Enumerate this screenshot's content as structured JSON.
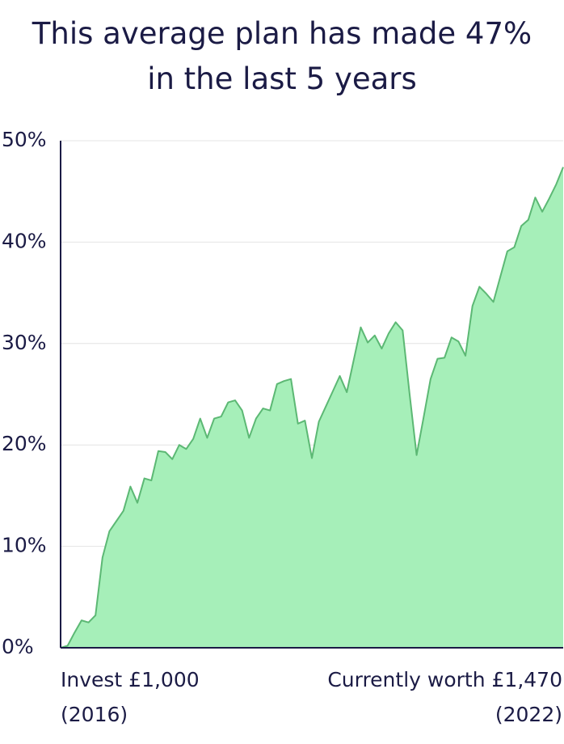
{
  "chart_data": {
    "type": "area",
    "title": "This average plan has made 47% in the last 5 years",
    "values": [
      0,
      0.2,
      1.5,
      2.7,
      2.5,
      3.2,
      8.9,
      11.5,
      12.5,
      13.5,
      15.9,
      14.3,
      16.7,
      16.5,
      19.4,
      19.3,
      18.6,
      20.0,
      19.6,
      20.6,
      22.6,
      20.7,
      22.6,
      22.8,
      24.2,
      24.4,
      23.4,
      20.7,
      22.6,
      23.6,
      23.4,
      26.0,
      26.3,
      26.5,
      22.1,
      22.4,
      18.7,
      22.3,
      23.8,
      25.3,
      26.8,
      25.2,
      28.4,
      31.6,
      30.1,
      30.8,
      29.5,
      31.0,
      32.1,
      31.3,
      25.0,
      19.0,
      22.7,
      26.5,
      28.5,
      28.6,
      30.6,
      30.2,
      28.8,
      33.7,
      35.6,
      34.9,
      34.1,
      36.6,
      39.1,
      39.5,
      41.6,
      42.2,
      44.4,
      43.0,
      44.3,
      45.7,
      47.4
    ],
    "color": "#a6efb9",
    "line_color": "#5cb874",
    "ylim": [
      0,
      50
    ],
    "yticks": [
      {
        "value": 0,
        "label": "0%"
      },
      {
        "value": 10,
        "label": "10%"
      },
      {
        "value": 20,
        "label": "20%"
      },
      {
        "value": 30,
        "label": "30%"
      },
      {
        "value": 40,
        "label": "40%"
      },
      {
        "value": 50,
        "label": "50%"
      }
    ],
    "grid": true,
    "start_label": "Invest £1,000",
    "start_year": "(2016)",
    "end_label": "Currently worth £1,470",
    "end_year": "(2022)"
  }
}
